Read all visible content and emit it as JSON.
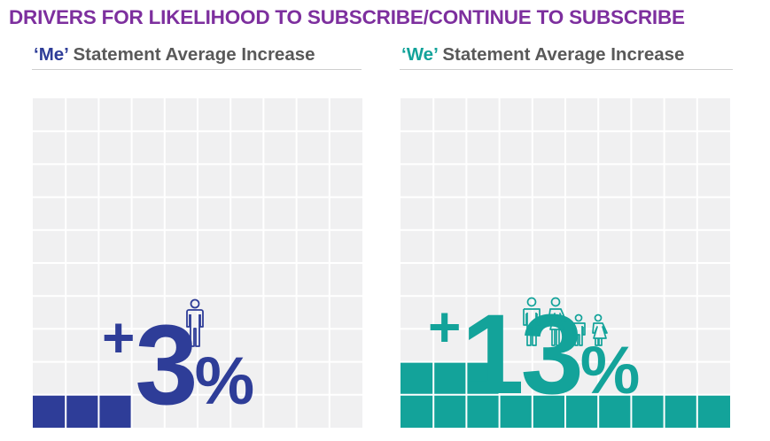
{
  "title": "DRIVERS FOR LIKELIHOOD TO SUBSCRIBE/CONTINUE TO SUBSCRIBE",
  "me_panel": {
    "subtitle_key": "‘Me’",
    "subtitle_rest": " Statement Average Increase",
    "plus": "+",
    "number": "3",
    "percent": "%",
    "filled_cells": 3,
    "icon": "single-person-icon",
    "color": "#2e3d98"
  },
  "we_panel": {
    "subtitle_key": "‘We’",
    "subtitle_rest": " Statement Average Increase",
    "plus": "+",
    "number": "13",
    "percent": "%",
    "filled_cells": 13,
    "icon": "family-icon",
    "color": "#13a39a"
  },
  "colors": {
    "title": "#7d2f9e",
    "subtitle_gray": "#595959",
    "grid_bg": "#f0f0f1"
  }
}
